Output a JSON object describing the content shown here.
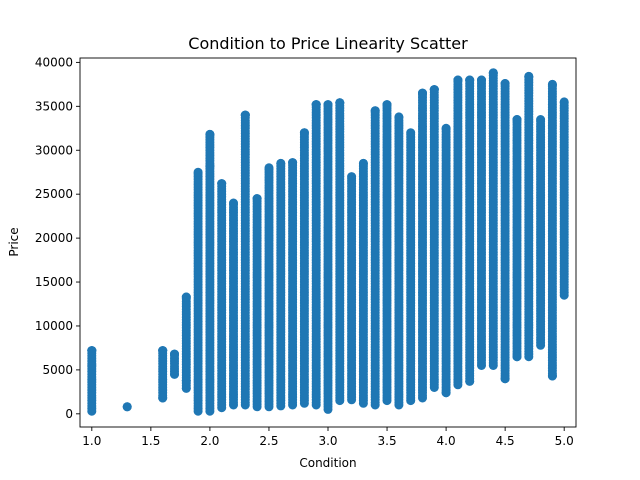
{
  "chart_data": {
    "type": "scatter",
    "title": "Condition to Price Linearity Scatter",
    "xlabel": "Condition",
    "ylabel": "Price",
    "xlim": [
      0.9,
      5.1
    ],
    "ylim": [
      -1500,
      40500
    ],
    "xticks": [
      1.0,
      1.5,
      2.0,
      2.5,
      3.0,
      3.5,
      4.0,
      4.5,
      5.0
    ],
    "xtick_labels": [
      "1.0",
      "1.5",
      "2.0",
      "2.5",
      "3.0",
      "3.5",
      "4.0",
      "4.5",
      "5.0"
    ],
    "yticks": [
      0,
      5000,
      10000,
      15000,
      20000,
      25000,
      30000,
      35000,
      40000
    ],
    "ytick_labels": [
      "0",
      "5000",
      "10000",
      "15000",
      "20000",
      "25000",
      "30000",
      "35000",
      "40000"
    ],
    "grid": false,
    "marker_color": "#1f77b4",
    "column_ranges": [
      {
        "x": 1.0,
        "min": 300,
        "max": 7200
      },
      {
        "x": 1.3,
        "min": 800,
        "max": 800
      },
      {
        "x": 1.6,
        "min": 1800,
        "max": 7200
      },
      {
        "x": 1.7,
        "min": 4500,
        "max": 6800
      },
      {
        "x": 1.8,
        "min": 2900,
        "max": 13300
      },
      {
        "x": 1.9,
        "min": 300,
        "max": 27500
      },
      {
        "x": 2.0,
        "min": 300,
        "max": 31800
      },
      {
        "x": 2.1,
        "min": 700,
        "max": 26200
      },
      {
        "x": 2.2,
        "min": 1000,
        "max": 24000
      },
      {
        "x": 2.3,
        "min": 1000,
        "max": 34000
      },
      {
        "x": 2.4,
        "min": 800,
        "max": 24500
      },
      {
        "x": 2.5,
        "min": 800,
        "max": 28000
      },
      {
        "x": 2.6,
        "min": 900,
        "max": 28500
      },
      {
        "x": 2.7,
        "min": 1000,
        "max": 28600
      },
      {
        "x": 2.8,
        "min": 1200,
        "max": 32000
      },
      {
        "x": 2.9,
        "min": 1000,
        "max": 35200
      },
      {
        "x": 3.0,
        "min": 500,
        "max": 35200
      },
      {
        "x": 3.1,
        "min": 1500,
        "max": 35400
      },
      {
        "x": 3.2,
        "min": 1600,
        "max": 27000
      },
      {
        "x": 3.3,
        "min": 1200,
        "max": 28500
      },
      {
        "x": 3.4,
        "min": 1000,
        "max": 34500
      },
      {
        "x": 3.5,
        "min": 1500,
        "max": 35200
      },
      {
        "x": 3.6,
        "min": 1000,
        "max": 33800
      },
      {
        "x": 3.7,
        "min": 1500,
        "max": 32000
      },
      {
        "x": 3.8,
        "min": 1800,
        "max": 36500
      },
      {
        "x": 3.9,
        "min": 3000,
        "max": 36900
      },
      {
        "x": 4.0,
        "min": 2400,
        "max": 32500
      },
      {
        "x": 4.1,
        "min": 3300,
        "max": 38000
      },
      {
        "x": 4.2,
        "min": 3700,
        "max": 38000
      },
      {
        "x": 4.3,
        "min": 5500,
        "max": 38000
      },
      {
        "x": 4.4,
        "min": 5500,
        "max": 38800
      },
      {
        "x": 4.5,
        "min": 4000,
        "max": 37600
      },
      {
        "x": 4.6,
        "min": 6500,
        "max": 33500
      },
      {
        "x": 4.7,
        "min": 6500,
        "max": 38400
      },
      {
        "x": 4.8,
        "min": 7800,
        "max": 33500
      },
      {
        "x": 4.9,
        "min": 4300,
        "max": 37500
      },
      {
        "x": 5.0,
        "min": 13500,
        "max": 35500
      }
    ],
    "outlier_points": [
      {
        "x": 1.0,
        "y": 7200
      },
      {
        "x": 1.0,
        "y": 5500
      },
      {
        "x": 1.3,
        "y": 800
      },
      {
        "x": 1.6,
        "y": 1800
      },
      {
        "x": 1.6,
        "y": 7200
      },
      {
        "x": 1.7,
        "y": 6800
      },
      {
        "x": 1.7,
        "y": 4500
      },
      {
        "x": 1.8,
        "y": 13300
      },
      {
        "x": 1.8,
        "y": 3800
      },
      {
        "x": 1.8,
        "y": 2900
      },
      {
        "x": 2.0,
        "y": 31800
      },
      {
        "x": 2.0,
        "y": 28200
      },
      {
        "x": 2.3,
        "y": 34000
      },
      {
        "x": 2.8,
        "y": 32000
      },
      {
        "x": 2.9,
        "y": 35200
      },
      {
        "x": 3.0,
        "y": 35200
      },
      {
        "x": 3.1,
        "y": 35400
      },
      {
        "x": 3.4,
        "y": 34500
      },
      {
        "x": 3.5,
        "y": 35200
      },
      {
        "x": 3.8,
        "y": 36500
      },
      {
        "x": 3.9,
        "y": 36900
      },
      {
        "x": 4.1,
        "y": 38000
      },
      {
        "x": 4.2,
        "y": 38000
      },
      {
        "x": 4.3,
        "y": 38000
      },
      {
        "x": 4.4,
        "y": 38800
      },
      {
        "x": 4.7,
        "y": 38400
      },
      {
        "x": 4.9,
        "y": 37500
      },
      {
        "x": 4.9,
        "y": 4300
      },
      {
        "x": 4.5,
        "y": 4000
      },
      {
        "x": 4.6,
        "y": 6500
      },
      {
        "x": 4.2,
        "y": 3700
      },
      {
        "x": 4.0,
        "y": 2400
      }
    ]
  }
}
